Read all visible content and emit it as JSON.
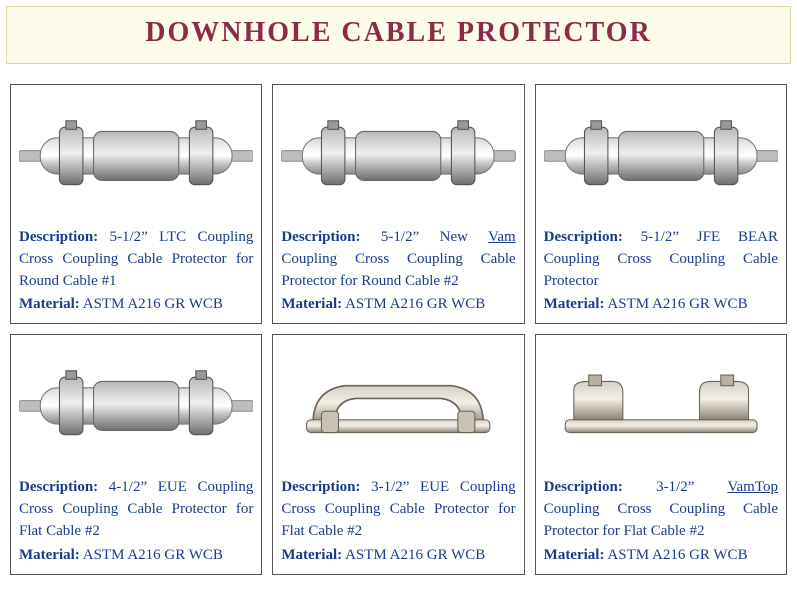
{
  "title": "DOWNHOLE CABLE PROTECTOR",
  "title_color": "#8b2a4a",
  "title_bg": "#fdfceb",
  "title_border": "#d8d49a",
  "text_color": "#1a3b8c",
  "card_border": "#555555",
  "labels": {
    "description": "Description:",
    "material": "Material:"
  },
  "products": [
    {
      "desc_html": "5-1/2” LTC Coupling Cross Coupling Cable Protector for Round Cable #1",
      "material": "ASTM A216 GR WCB",
      "svg_variant": "round"
    },
    {
      "desc_html": "5-1/2” New <span class=\"underline\">Vam</span> Coupling Cross Coupling Cable Protector for Round Cable #2",
      "material": "ASTM A216 GR WCB",
      "svg_variant": "round"
    },
    {
      "desc_html": "5-1/2” JFE BEAR Coupling Cross Coupling Cable Protector",
      "material": "ASTM A216 GR WCB",
      "svg_variant": "round"
    },
    {
      "desc_html": "4-1/2” EUE Coupling Cross Coupling Cable Protector for Flat Cable #2",
      "material": "ASTM A216 GR WCB",
      "svg_variant": "round"
    },
    {
      "desc_html": "3-1/2” EUE Coupling Cross Coupling Cable Protector for Flat Cable #2",
      "material": "ASTM A216 GR WCB",
      "svg_variant": "flat"
    },
    {
      "desc_html": "3-1/2” <span class=\"underline\">VamTop</span> Coupling Cross Coupling Cable Protector for Flat Cable #2",
      "material": "ASTM A216 GR WCB",
      "svg_variant": "flat_open"
    }
  ]
}
